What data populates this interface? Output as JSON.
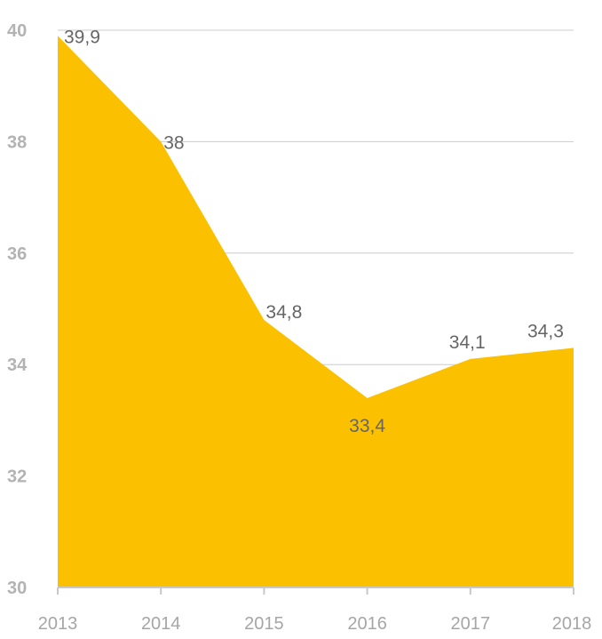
{
  "chart_data": {
    "type": "area",
    "title": "",
    "xlabel": "",
    "ylabel": "",
    "x": [
      "2013",
      "2014",
      "2015",
      "2016",
      "2017",
      "2018"
    ],
    "series": [
      {
        "values": [
          39.9,
          38.0,
          34.8,
          33.4,
          34.1,
          34.3
        ],
        "labels": [
          "39,9",
          "38",
          "34,8",
          "33,4",
          "34,1",
          "34,3"
        ],
        "color": "#fbc100"
      }
    ],
    "ylim": [
      30,
      40
    ],
    "yticks": [
      30,
      32,
      34,
      36,
      38,
      40
    ],
    "ytick_labels": [
      "30",
      "32",
      "34",
      "36",
      "38",
      "40"
    ],
    "grid": true,
    "legend": "none"
  }
}
